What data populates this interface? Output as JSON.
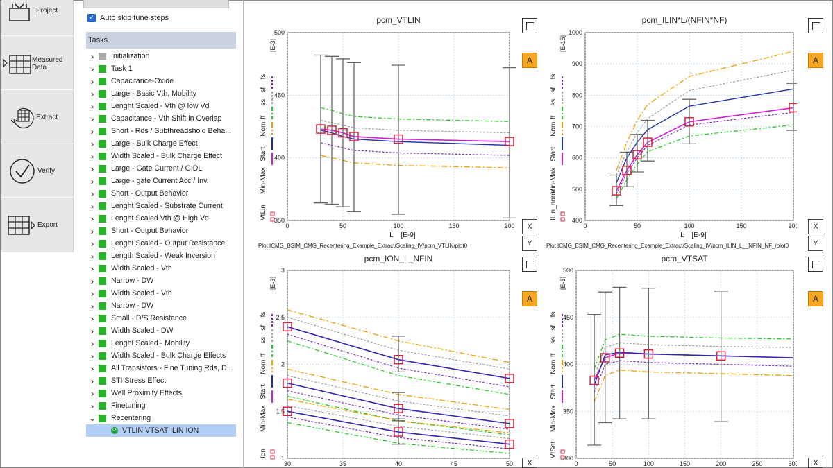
{
  "nav": [
    {
      "label": "Project",
      "icon": "project-icon"
    },
    {
      "label": "Measured Data",
      "icon": "table-grid-icon"
    },
    {
      "label": "Extract",
      "icon": "extract-icon"
    },
    {
      "label": "Verify",
      "icon": "checkmark-icon"
    },
    {
      "label": "Export",
      "icon": "export-grid-icon"
    }
  ],
  "auto_skip": {
    "label": "Auto skip tune steps",
    "checked": true
  },
  "tasks_header": "Tasks",
  "tasks": [
    {
      "label": "Initialization",
      "color": "#aaaaaa"
    },
    {
      "label": "Task 1",
      "color": "#27b327"
    },
    {
      "label": "Capacitance-Oxide",
      "color": "#27b327"
    },
    {
      "label": "Large - Basic Vth, Mobility",
      "color": "#27b327"
    },
    {
      "label": "Lenght Scaled - Vth @ low Vd",
      "color": "#27b327"
    },
    {
      "label": "Capacitance - Vth Shift in Overlap",
      "color": "#27b327"
    },
    {
      "label": "Short - Rds / Subthreadshold Beha...",
      "color": "#27b327"
    },
    {
      "label": "Large - Bulk Charge Effect",
      "color": "#27b327"
    },
    {
      "label": "Width Scaled - Bulk Charge Effect",
      "color": "#27b327"
    },
    {
      "label": "Large - Gate Current / GIDL",
      "color": "#27b327"
    },
    {
      "label": "Large - gate Current Acc / Inv.",
      "color": "#27b327"
    },
    {
      "label": "Short - Output Behavior",
      "color": "#27b327"
    },
    {
      "label": "Lenght Scaled - Substrate Current",
      "color": "#27b327"
    },
    {
      "label": "Lenght Scaled Vth @ High Vd",
      "color": "#27b327"
    },
    {
      "label": "Short - Output Behavior",
      "color": "#27b327"
    },
    {
      "label": "Lenght Scaled - Output Resistance",
      "color": "#27b327"
    },
    {
      "label": "Length Scaled - Weak Inversion",
      "color": "#27b327"
    },
    {
      "label": "Width Scaled - Vth",
      "color": "#27b327"
    },
    {
      "label": "Narrow - DW",
      "color": "#27b327"
    },
    {
      "label": "Width Scaled - Vth",
      "color": "#27b327"
    },
    {
      "label": "Narrow - DW",
      "color": "#27b327"
    },
    {
      "label": "Small - D/S Resistance",
      "color": "#27b327"
    },
    {
      "label": "Width Scaled - DW",
      "color": "#27b327"
    },
    {
      "label": "Lenght Scaled - Mobility",
      "color": "#27b327"
    },
    {
      "label": "Width Scaled - Bulk Charge Effects",
      "color": "#27b327"
    },
    {
      "label": "All Transistors - Fine Tuning Rds, D...",
      "color": "#27b327"
    },
    {
      "label": "STI Stress Effect",
      "color": "#27b327"
    },
    {
      "label": "Well Proximity Effects",
      "color": "#27b327"
    },
    {
      "label": "Finetuning",
      "color": "#27b327"
    },
    {
      "label": "Recentering",
      "color": "#27b327",
      "expanded": true
    }
  ],
  "selected_subtask": "VTLIN VTSAT ILIN ION",
  "buttons": {
    "x": "X",
    "y": "Y",
    "a": "A"
  },
  "legend_labels": [
    "Min-Max",
    "Start",
    "Nom",
    "ff",
    "ss",
    "sf",
    "fs"
  ],
  "chart_data": [
    {
      "type": "line",
      "title": "pcm_VTLIN",
      "ylabel": "VtLin",
      "xlabel": "L",
      "xunit": "[E-9]",
      "yunit": "[E-3]",
      "xlim": [
        0,
        200
      ],
      "ylim": [
        350,
        500
      ],
      "xticks": [
        0,
        50,
        100,
        150,
        200
      ],
      "yticks": [
        350,
        400,
        450,
        500
      ],
      "path": "Plot ICMG_BSIM_CMG_Recentering_Example_Extract/Scaling_IV/pcm_VTLIN/plot0",
      "x": [
        30,
        40,
        50,
        60,
        100,
        200
      ],
      "series": [
        {
          "key": "start",
          "values": [
            423,
            422,
            420,
            417,
            415,
            413
          ]
        },
        {
          "key": "nom",
          "values": [
            422,
            420,
            417,
            415,
            413,
            410
          ]
        },
        {
          "key": "ff",
          "values": [
            402,
            400,
            398,
            396,
            394,
            392
          ]
        },
        {
          "key": "ss",
          "values": [
            440,
            438,
            435,
            433,
            431,
            429
          ]
        },
        {
          "key": "sf",
          "values": [
            430,
            428,
            426,
            424,
            422,
            420
          ]
        },
        {
          "key": "fs",
          "values": [
            412,
            410,
            408,
            406,
            404,
            402
          ]
        }
      ],
      "errorbars": [
        {
          "x": 30,
          "lo": 364,
          "hi": 482
        },
        {
          "x": 40,
          "lo": 363,
          "hi": 481
        },
        {
          "x": 50,
          "lo": 361,
          "hi": 479
        },
        {
          "x": 60,
          "lo": 357,
          "hi": 476
        },
        {
          "x": 100,
          "lo": 355,
          "hi": 474
        },
        {
          "x": 200,
          "lo": 352,
          "hi": 472
        }
      ],
      "markers": {
        "x": [
          30,
          40,
          50,
          60,
          100,
          200
        ],
        "y": [
          423,
          422,
          420,
          417,
          415,
          413
        ]
      }
    },
    {
      "type": "line",
      "title": "pcm_ILIN*L/(NFIN*NF)",
      "ylabel": "ILin_norm",
      "xlabel": "L",
      "xunit": "[E-9]",
      "yunit": "[E-15]",
      "xlim": [
        0,
        200
      ],
      "ylim": [
        400,
        1000
      ],
      "xticks": [
        0,
        50,
        100,
        150,
        200
      ],
      "yticks": [
        400,
        500,
        600,
        700,
        800,
        900,
        1000
      ],
      "path": "Plot ICMG_BSIM_CMG_Recentering_Example_Extract/Scaling_IV/pcm_ILIN_L__NFIN_NF_/plot0",
      "x": [
        30,
        40,
        50,
        60,
        100,
        200
      ],
      "series": [
        {
          "key": "start",
          "values": [
            495,
            560,
            610,
            650,
            715,
            760
          ]
        },
        {
          "key": "nom",
          "values": [
            520,
            600,
            650,
            690,
            765,
            820
          ]
        },
        {
          "key": "ff",
          "values": [
            560,
            650,
            720,
            770,
            860,
            940
          ]
        },
        {
          "key": "ss",
          "values": [
            470,
            530,
            580,
            620,
            670,
            705
          ]
        },
        {
          "key": "sf",
          "values": [
            545,
            620,
            680,
            725,
            815,
            880
          ]
        },
        {
          "key": "fs",
          "values": [
            485,
            550,
            600,
            640,
            705,
            745
          ]
        }
      ],
      "errorbars": [
        {
          "x": 30,
          "lo": 448,
          "hi": 545
        },
        {
          "x": 40,
          "lo": 508,
          "hi": 618
        },
        {
          "x": 50,
          "lo": 555,
          "hi": 675
        },
        {
          "x": 60,
          "lo": 590,
          "hi": 720
        },
        {
          "x": 100,
          "lo": 645,
          "hi": 787
        },
        {
          "x": 200,
          "lo": 688,
          "hi": 838
        }
      ],
      "markers": {
        "x": [
          30,
          40,
          50,
          60,
          100,
          200
        ],
        "y": [
          495,
          560,
          610,
          650,
          715,
          760
        ]
      }
    },
    {
      "type": "line",
      "title": "pcm_ION_L_NFIN",
      "ylabel": "Ion",
      "xlabel": "L",
      "xunit": "",
      "yunit": "[E-3]",
      "xlim": [
        30,
        50
      ],
      "ylim": [
        1.0,
        3.0
      ],
      "xticks": [
        30,
        35,
        40,
        45,
        50
      ],
      "yticks": [
        1.0,
        1.5,
        2.0,
        2.5,
        3.0
      ],
      "path": "",
      "x": [
        30,
        40,
        50
      ],
      "series": [
        {
          "key": "start",
          "values": [
            2.4,
            2.05,
            1.85
          ]
        },
        {
          "key": "nom",
          "values": [
            2.4,
            2.05,
            1.85
          ]
        },
        {
          "key": "ff",
          "values": [
            2.58,
            2.25,
            2.02
          ]
        },
        {
          "key": "ss",
          "values": [
            2.25,
            1.88,
            1.68
          ]
        },
        {
          "key": "sf",
          "values": [
            2.5,
            2.15,
            1.95
          ]
        },
        {
          "key": "fs",
          "values": [
            2.32,
            1.96,
            1.76
          ]
        },
        {
          "key": "start",
          "values": [
            1.8,
            1.53,
            1.37
          ]
        },
        {
          "key": "nom",
          "values": [
            1.8,
            1.53,
            1.37
          ]
        },
        {
          "key": "ff",
          "values": [
            1.95,
            1.68,
            1.52
          ]
        },
        {
          "key": "ss",
          "values": [
            1.66,
            1.4,
            1.25
          ]
        },
        {
          "key": "sf",
          "values": [
            1.88,
            1.61,
            1.45
          ]
        },
        {
          "key": "fs",
          "values": [
            1.72,
            1.46,
            1.31
          ]
        },
        {
          "key": "start",
          "values": [
            1.5,
            1.28,
            1.15
          ]
        },
        {
          "key": "nom",
          "values": [
            1.5,
            1.28,
            1.15
          ]
        },
        {
          "key": "ff",
          "values": [
            1.63,
            1.4,
            1.27
          ]
        },
        {
          "key": "ss",
          "values": [
            1.38,
            1.16,
            1.05
          ]
        },
        {
          "key": "sf",
          "values": [
            1.56,
            1.34,
            1.21
          ]
        },
        {
          "key": "fs",
          "values": [
            1.44,
            1.22,
            1.1
          ]
        }
      ],
      "errorbars": [
        {
          "x": 40,
          "lo": 1.92,
          "hi": 2.3
        },
        {
          "x": 40,
          "lo": 1.4,
          "hi": 1.7
        },
        {
          "x": 40,
          "lo": 1.15,
          "hi": 1.42
        }
      ],
      "markers": {
        "x": [
          30,
          40,
          50,
          30,
          40,
          50,
          30,
          40,
          50
        ],
        "y": [
          2.4,
          2.05,
          1.85,
          1.8,
          1.53,
          1.37,
          1.5,
          1.28,
          1.15
        ]
      }
    },
    {
      "type": "line",
      "title": "pcm_VTSAT",
      "ylabel": "VtSat",
      "xlabel": "L",
      "xunit": "",
      "yunit": "[E-3]",
      "xlim": [
        0,
        300
      ],
      "ylim": [
        300,
        500
      ],
      "xticks": [
        0,
        50,
        100,
        150,
        200,
        250,
        300
      ],
      "yticks": [
        300,
        350,
        400,
        450,
        500
      ],
      "path": "",
      "x": [
        25,
        40,
        60,
        100,
        200,
        300
      ],
      "series": [
        {
          "key": "start",
          "values": [
            383,
            407,
            412,
            411,
            409,
            407
          ]
        },
        {
          "key": "nom",
          "values": [
            378,
            410,
            413,
            411,
            409,
            407
          ]
        },
        {
          "key": "ff",
          "values": [
            360,
            388,
            394,
            392,
            390,
            388
          ]
        },
        {
          "key": "ss",
          "values": [
            395,
            426,
            432,
            430,
            428,
            427
          ]
        },
        {
          "key": "sf",
          "values": [
            388,
            418,
            423,
            421,
            419,
            418
          ]
        },
        {
          "key": "fs",
          "values": [
            370,
            400,
            404,
            402,
            400,
            398
          ]
        }
      ],
      "errorbars": [
        {
          "x": 25,
          "lo": 314,
          "hi": 453
        },
        {
          "x": 40,
          "lo": 338,
          "hi": 477
        },
        {
          "x": 60,
          "lo": 342,
          "hi": 482
        },
        {
          "x": 100,
          "lo": 342,
          "hi": 481
        },
        {
          "x": 200,
          "lo": 339,
          "hi": 478
        }
      ],
      "markers": {
        "x": [
          25,
          40,
          60,
          100,
          200
        ],
        "y": [
          383,
          407,
          412,
          411,
          409
        ]
      }
    }
  ],
  "series_colors": {
    "start": "#d21fd2",
    "nom": "#1f2fb0",
    "ff": "#f0a000",
    "ss": "#22d022",
    "sf": "#a0a0a0",
    "fs": "#7b2db8"
  }
}
